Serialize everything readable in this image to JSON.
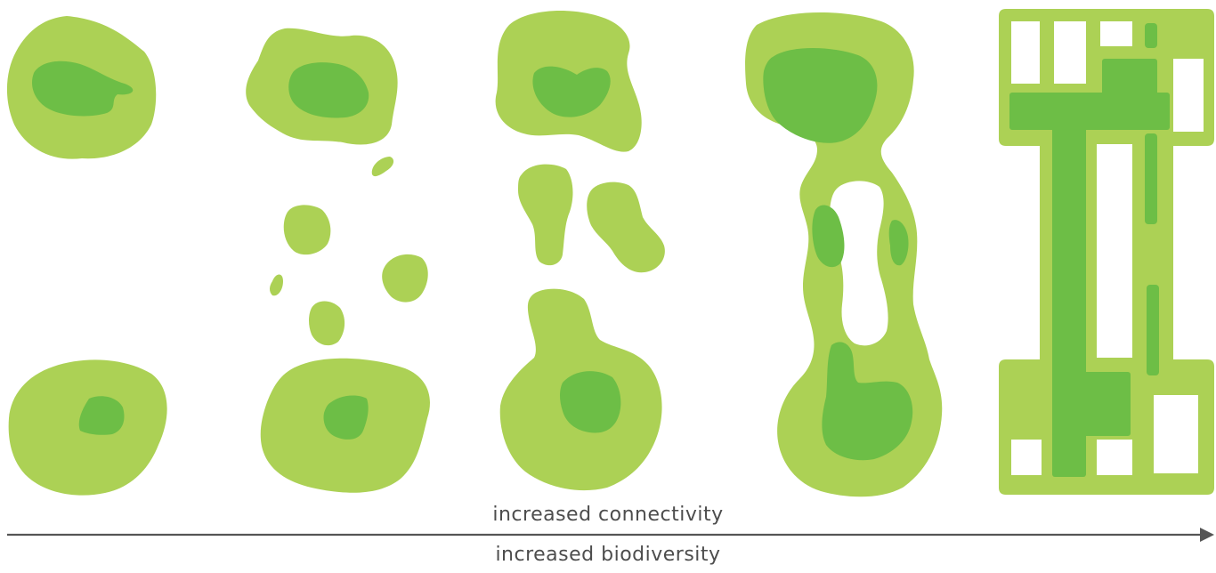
{
  "colors": {
    "patch_light": "#acd155",
    "patch_core": "#6dbe46",
    "arrow": "#555555",
    "label": "#4d4d4d"
  },
  "labels": {
    "above_arrow": "increased connectivity",
    "below_arrow": "increased biodiversity"
  },
  "stages": [
    {
      "name": "isolated-patches"
    },
    {
      "name": "stepping-stones"
    },
    {
      "name": "partial-corridor"
    },
    {
      "name": "continuous-corridor"
    },
    {
      "name": "urban-green-grid"
    }
  ]
}
